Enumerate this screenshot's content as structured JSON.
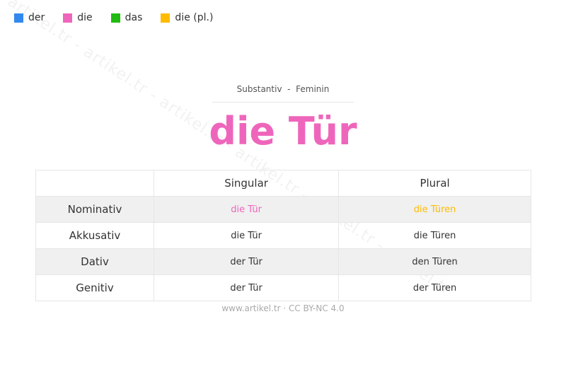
{
  "watermark": "artikel.tr - artikel.tr - artikel.tr - artikel.tr - artikel.tr - artikel.tr",
  "legend": [
    {
      "label": "der",
      "color": "#3388ee"
    },
    {
      "label": "die",
      "color": "#ee66bb"
    },
    {
      "label": "das",
      "color": "#22bb11"
    },
    {
      "label": "die (pl.)",
      "color": "#ffbb00"
    }
  ],
  "subtitle": "Substantiv  -  Feminin",
  "title": "die Tür",
  "title_color": "#ee66bb",
  "table": {
    "headers": [
      "",
      "Singular",
      "Plural"
    ],
    "rows": [
      {
        "case": "Nominativ",
        "singular": "die Tür",
        "plural": "die Türen",
        "singular_color": "#ee66bb",
        "plural_color": "#ffbb00"
      },
      {
        "case": "Akkusativ",
        "singular": "die Tür",
        "plural": "die Türen"
      },
      {
        "case": "Dativ",
        "singular": "der Tür",
        "plural": "den Türen"
      },
      {
        "case": "Genitiv",
        "singular": "der Tür",
        "plural": "der Türen"
      }
    ]
  },
  "footer": "www.artikel.tr · CC BY-NC 4.0"
}
